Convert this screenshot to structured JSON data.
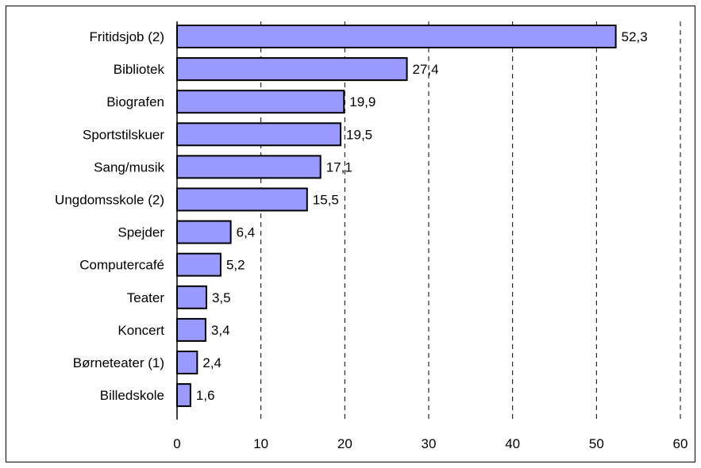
{
  "chart_data": {
    "type": "bar",
    "orientation": "horizontal",
    "categories": [
      "Fritidsjob (2)",
      "Bibliotek",
      "Biografen",
      "Sportstilskuer",
      "Sang/musik",
      "Ungdomsskole (2)",
      "Spejder",
      "Computercafé",
      "Teater",
      "Koncert",
      "Børneteater (1)",
      "Billedskole"
    ],
    "values": [
      52.3,
      27.4,
      19.9,
      19.5,
      17.1,
      15.5,
      6.4,
      5.2,
      3.5,
      3.4,
      2.4,
      1.6
    ],
    "value_labels": [
      "52,3",
      "27,4",
      "19,9",
      "19,5",
      "17,1",
      "15,5",
      "6,4",
      "5,2",
      "3,5",
      "3,4",
      "2,4",
      "1,6"
    ],
    "xlim": [
      0,
      60
    ],
    "xticks": [
      0,
      10,
      20,
      30,
      40,
      50,
      60
    ],
    "grid": "vertical dashed",
    "legend": "none",
    "title": "",
    "xlabel": "",
    "ylabel": "",
    "colors": {
      "bar_fill": "#9999ff",
      "bar_stroke": "#000000",
      "grid": "#000000"
    }
  }
}
